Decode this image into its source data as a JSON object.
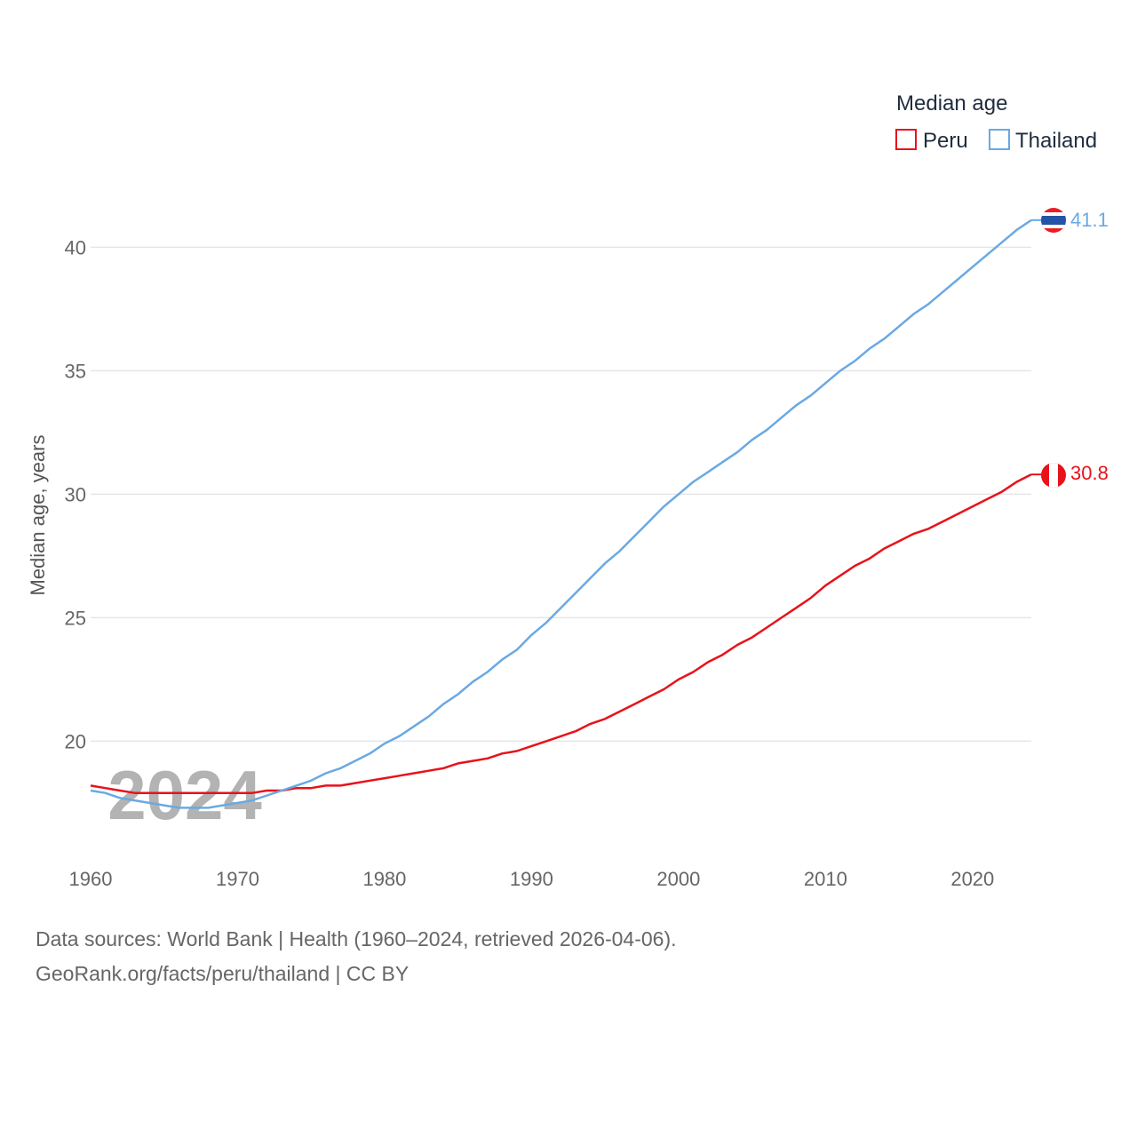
{
  "chart_data": {
    "type": "line",
    "title": "Median age",
    "ylabel": "Median age, years",
    "xlabel": "",
    "xlim": [
      1960,
      2024
    ],
    "ylim": [
      16.2,
      43
    ],
    "y_ticks": [
      20,
      25,
      30,
      35,
      40
    ],
    "x_ticks": [
      1960,
      1970,
      1980,
      1990,
      2000,
      2010,
      2020
    ],
    "grid": true,
    "legend_placement": "top-right",
    "watermark_year": "2024",
    "series": [
      {
        "name": "Peru",
        "color": "#e8121a",
        "end_label": "30.8",
        "years": [
          1960,
          1961,
          1962,
          1963,
          1964,
          1965,
          1966,
          1967,
          1968,
          1969,
          1970,
          1971,
          1972,
          1973,
          1974,
          1975,
          1976,
          1977,
          1978,
          1979,
          1980,
          1981,
          1982,
          1983,
          1984,
          1985,
          1986,
          1987,
          1988,
          1989,
          1990,
          1991,
          1992,
          1993,
          1994,
          1995,
          1996,
          1997,
          1998,
          1999,
          2000,
          2001,
          2002,
          2003,
          2004,
          2005,
          2006,
          2007,
          2008,
          2009,
          2010,
          2011,
          2012,
          2013,
          2014,
          2015,
          2016,
          2017,
          2018,
          2019,
          2020,
          2021,
          2022,
          2023,
          2024
        ],
        "values": [
          18.2,
          18.1,
          18.0,
          17.9,
          17.9,
          17.9,
          17.9,
          17.9,
          17.9,
          17.9,
          17.9,
          17.9,
          18.0,
          18.0,
          18.1,
          18.1,
          18.2,
          18.2,
          18.3,
          18.4,
          18.5,
          18.6,
          18.7,
          18.8,
          18.9,
          19.1,
          19.2,
          19.3,
          19.5,
          19.6,
          19.8,
          20.0,
          20.2,
          20.4,
          20.7,
          20.9,
          21.2,
          21.5,
          21.8,
          22.1,
          22.5,
          22.8,
          23.2,
          23.5,
          23.9,
          24.2,
          24.6,
          25.0,
          25.4,
          25.8,
          26.3,
          26.7,
          27.1,
          27.4,
          27.8,
          28.1,
          28.4,
          28.6,
          28.9,
          29.2,
          29.5,
          29.8,
          30.1,
          30.5,
          30.8
        ]
      },
      {
        "name": "Thailand",
        "color": "#6aa9e3",
        "end_label": "41.1",
        "years": [
          1960,
          1961,
          1962,
          1963,
          1964,
          1965,
          1966,
          1967,
          1968,
          1969,
          1970,
          1971,
          1972,
          1973,
          1974,
          1975,
          1976,
          1977,
          1978,
          1979,
          1980,
          1981,
          1982,
          1983,
          1984,
          1985,
          1986,
          1987,
          1988,
          1989,
          1990,
          1991,
          1992,
          1993,
          1994,
          1995,
          1996,
          1997,
          1998,
          1999,
          2000,
          2001,
          2002,
          2003,
          2004,
          2005,
          2006,
          2007,
          2008,
          2009,
          2010,
          2011,
          2012,
          2013,
          2014,
          2015,
          2016,
          2017,
          2018,
          2019,
          2020,
          2021,
          2022,
          2023,
          2024
        ],
        "values": [
          18.0,
          17.9,
          17.7,
          17.6,
          17.5,
          17.4,
          17.3,
          17.3,
          17.3,
          17.4,
          17.5,
          17.6,
          17.8,
          18.0,
          18.2,
          18.4,
          18.7,
          18.9,
          19.2,
          19.5,
          19.9,
          20.2,
          20.6,
          21.0,
          21.5,
          21.9,
          22.4,
          22.8,
          23.3,
          23.7,
          24.3,
          24.8,
          25.4,
          26.0,
          26.6,
          27.2,
          27.7,
          28.3,
          28.9,
          29.5,
          30.0,
          30.5,
          30.9,
          31.3,
          31.7,
          32.2,
          32.6,
          33.1,
          33.6,
          34.0,
          34.5,
          35.0,
          35.4,
          35.9,
          36.3,
          36.8,
          37.3,
          37.7,
          38.2,
          38.7,
          39.2,
          39.7,
          40.2,
          40.7,
          41.1
        ]
      }
    ]
  },
  "footer": {
    "sources": "Data sources: World Bank | Health (1960–2024, retrieved 2026-04-06).",
    "url": "GeoRank.org/facts/peru/thailand | CC BY"
  }
}
